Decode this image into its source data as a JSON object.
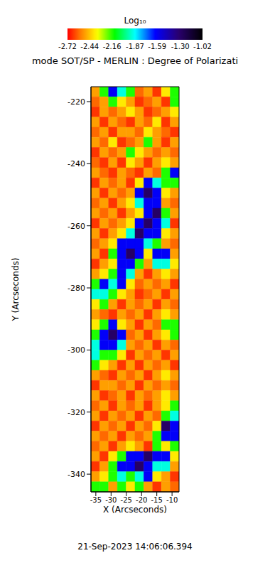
{
  "chart_data": {
    "type": "heatmap",
    "title": "mode SOT/SP - MERLIN : Degree of Polarizati",
    "subtitle": "21-Sep-2023 14:06:06.394",
    "x_label": "X (Arcseconds)",
    "y_label": "Y (Arcseconds)",
    "x": [
      -35.16,
      -32.27,
      -29.38,
      -26.49,
      -23.6,
      -20.71,
      -17.82,
      -14.93,
      -12.04,
      -9.15
    ],
    "y": [
      -216.83,
      -220.09,
      -223.36,
      -226.62,
      -229.88,
      -233.14,
      -236.41,
      -239.67,
      -242.93,
      -246.2,
      -249.46,
      -252.72,
      -255.99,
      -259.25,
      -262.51,
      -265.77,
      -269.04,
      -272.3,
      -275.56,
      -278.83,
      -282.09,
      -285.35,
      -288.62,
      -291.88,
      -295.14,
      -298.41,
      -301.67,
      -304.93,
      -308.19,
      -311.46,
      -314.72,
      -317.98,
      -321.25,
      -324.51,
      -327.77,
      -331.04,
      -334.3,
      -337.56,
      -340.83,
      -344.09
    ],
    "z": [
      [
        -2.5,
        -2.15,
        -1.6,
        -1.9,
        -2.15,
        -2.58,
        -2.5,
        -2.65,
        -2.38,
        -2.15
      ],
      [
        -2.58,
        -2.5,
        -2.15,
        -2.38,
        -2.5,
        -2.65,
        -2.58,
        -2.5,
        -2.65,
        -2.15
      ],
      [
        -2.65,
        -2.5,
        -2.58,
        -2.5,
        -2.38,
        -2.5,
        -2.65,
        -2.58,
        -2.5,
        -2.38
      ],
      [
        -2.5,
        -2.65,
        -2.5,
        -2.58,
        -2.65,
        -2.5,
        -2.58,
        -2.38,
        -2.65,
        -2.5
      ],
      [
        -2.58,
        -2.5,
        -2.65,
        -2.5,
        -2.5,
        -2.58,
        -2.38,
        -2.5,
        -2.58,
        -2.65
      ],
      [
        -2.5,
        -2.58,
        -2.38,
        -2.65,
        -2.58,
        -2.5,
        -2.15,
        -2.5,
        -2.65,
        -2.5
      ],
      [
        -2.65,
        -2.5,
        -2.58,
        -2.5,
        -2.15,
        -2.38,
        -2.5,
        -2.58,
        -2.5,
        -2.58
      ],
      [
        -2.58,
        -2.65,
        -2.5,
        -2.65,
        -2.38,
        -2.5,
        -2.65,
        -2.5,
        -2.38,
        -2.5
      ],
      [
        -2.5,
        -2.58,
        -2.65,
        -2.5,
        -2.58,
        -2.65,
        -2.5,
        -2.58,
        -2.15,
        -1.6
      ],
      [
        -2.65,
        -2.5,
        -2.58,
        -2.5,
        -2.65,
        -2.38,
        -1.6,
        -1.9,
        -2.15,
        -2.15
      ],
      [
        -2.5,
        -2.65,
        -2.5,
        -2.58,
        -2.5,
        -1.6,
        -1.3,
        -1.6,
        -2.38,
        -2.5
      ],
      [
        -2.58,
        -2.5,
        -2.65,
        -2.5,
        -2.38,
        -1.9,
        -1.6,
        -1.6,
        -2.5,
        -2.58
      ],
      [
        -2.5,
        -2.58,
        -2.5,
        -2.65,
        -2.5,
        -2.38,
        -1.6,
        -1.3,
        -2.15,
        -2.5
      ],
      [
        -2.65,
        -2.5,
        -2.58,
        -2.5,
        -2.38,
        -1.6,
        -1.3,
        -1.6,
        -1.9,
        -2.65
      ],
      [
        -2.5,
        -2.65,
        -2.5,
        -2.38,
        -1.9,
        -1.3,
        -1.6,
        -1.6,
        -2.38,
        -2.5
      ],
      [
        -2.58,
        -2.5,
        -2.38,
        -1.6,
        -1.6,
        -1.6,
        -1.9,
        -2.15,
        -2.5,
        -2.58
      ],
      [
        -2.5,
        -2.65,
        -2.15,
        -1.6,
        -1.3,
        -1.6,
        -2.38,
        -1.6,
        -1.6,
        -2.5
      ],
      [
        -2.65,
        -2.5,
        -2.38,
        -1.6,
        -1.6,
        -2.15,
        -2.5,
        -1.9,
        -1.9,
        -2.38
      ],
      [
        -2.5,
        -2.38,
        -2.15,
        -1.6,
        -1.9,
        -2.5,
        -2.65,
        -2.5,
        -2.38,
        -2.5
      ],
      [
        -2.15,
        -1.6,
        -1.9,
        -1.6,
        -2.38,
        -2.58,
        -2.5,
        -2.58,
        -2.5,
        -2.65
      ],
      [
        -1.9,
        -1.9,
        -2.15,
        -2.38,
        -2.5,
        -2.65,
        -2.58,
        -2.5,
        -2.65,
        -2.5
      ],
      [
        -2.38,
        -2.15,
        -2.5,
        -2.65,
        -2.5,
        -2.58,
        -2.5,
        -2.65,
        -2.5,
        -2.58
      ],
      [
        -2.5,
        -2.58,
        -2.65,
        -2.5,
        -2.58,
        -2.5,
        -2.65,
        -2.5,
        -2.38,
        -2.5
      ],
      [
        -2.38,
        -2.15,
        -1.6,
        -2.38,
        -2.5,
        -2.65,
        -2.5,
        -2.58,
        -2.15,
        -2.15
      ],
      [
        -2.15,
        -1.6,
        -1.3,
        -1.6,
        -2.58,
        -2.5,
        -2.65,
        -2.5,
        -2.38,
        -2.15
      ],
      [
        -1.9,
        -1.6,
        -1.6,
        -1.9,
        -2.5,
        -2.58,
        -2.5,
        -2.65,
        -2.5,
        -2.58
      ],
      [
        -1.9,
        -2.15,
        -2.15,
        -2.38,
        -2.65,
        -2.5,
        -2.58,
        -2.5,
        -2.65,
        -2.5
      ],
      [
        -2.15,
        -2.38,
        -2.5,
        -2.65,
        -2.5,
        -2.65,
        -2.5,
        -2.58,
        -2.5,
        -2.65
      ],
      [
        -2.5,
        -2.58,
        -2.65,
        -2.5,
        -2.58,
        -2.5,
        -2.65,
        -2.5,
        -2.38,
        -2.5
      ],
      [
        -2.65,
        -2.5,
        -2.5,
        -2.58,
        -2.5,
        -2.65,
        -2.5,
        -2.58,
        -2.5,
        -2.58
      ],
      [
        -2.5,
        -2.65,
        -2.58,
        -2.5,
        -2.65,
        -2.5,
        -2.58,
        -2.5,
        -2.38,
        -2.5
      ],
      [
        -2.58,
        -2.5,
        -2.65,
        -2.5,
        -2.58,
        -2.5,
        -2.65,
        -2.5,
        -2.38,
        -2.15
      ],
      [
        -2.5,
        -2.65,
        -2.5,
        -2.58,
        -2.5,
        -2.65,
        -2.5,
        -2.58,
        -2.15,
        -1.9
      ],
      [
        -2.65,
        -2.5,
        -2.58,
        -2.5,
        -2.65,
        -2.5,
        -2.58,
        -2.38,
        -1.3,
        -1.6
      ],
      [
        -2.5,
        -2.58,
        -2.5,
        -2.65,
        -2.5,
        -2.58,
        -2.5,
        -2.15,
        -1.6,
        -1.6
      ],
      [
        -2.58,
        -2.5,
        -2.65,
        -2.5,
        -2.38,
        -2.5,
        -2.65,
        -2.15,
        -2.38,
        -2.15
      ],
      [
        -2.5,
        -2.65,
        -2.38,
        -2.15,
        -1.6,
        -1.6,
        -1.3,
        -1.6,
        -1.6,
        -2.38
      ],
      [
        -2.65,
        -2.5,
        -2.15,
        -1.6,
        -1.6,
        -1.3,
        -1.6,
        -1.9,
        -1.9,
        -2.5
      ],
      [
        -2.5,
        -2.38,
        -2.15,
        -1.9,
        -2.15,
        -1.9,
        -1.6,
        -2.38,
        -2.5,
        -2.65
      ],
      [
        -2.15,
        -2.15,
        -2.5,
        -2.15,
        -2.38,
        -2.15,
        -2.5,
        -2.65,
        -2.5,
        -2.58
      ]
    ],
    "xlim": [
      -36.6,
      -7.7
    ],
    "ylim": [
      -345.7,
      -215.2
    ],
    "xticks": [
      -35,
      -30,
      -25,
      -20,
      -15,
      -10
    ],
    "yticks": [
      -340,
      -320,
      -300,
      -280,
      -260,
      -240,
      -220
    ],
    "colorbar": {
      "label": "Log₁₀",
      "range": [
        -2.72,
        -1.02
      ],
      "ticks": [
        -2.72,
        -2.44,
        -2.16,
        -1.87,
        -1.59,
        {
          "value": -1.3,
          "label": "-1.30"
        },
        -1.02
      ]
    }
  }
}
